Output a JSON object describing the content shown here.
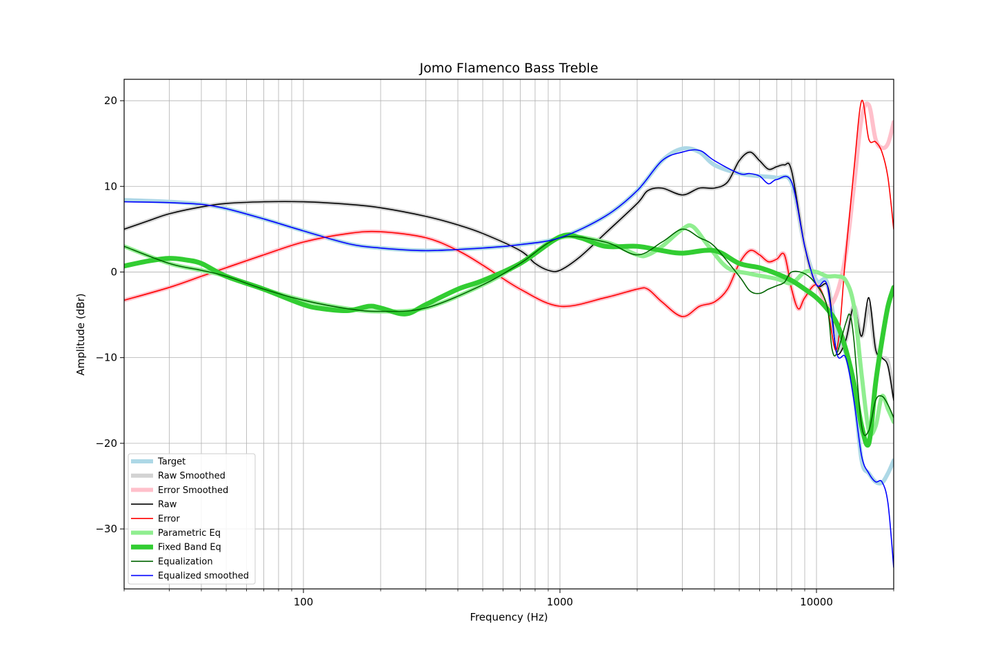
{
  "chart_data": {
    "type": "line",
    "title": "Jomo Flamenco Bass Treble",
    "xlabel": "Frequency (Hz)",
    "ylabel": "Amplitude (dBr)",
    "xscale": "log",
    "xlim": [
      20,
      20000
    ],
    "ylim": [
      -37,
      22.5
    ],
    "x_ticks": [
      100,
      1000,
      10000
    ],
    "x_tick_labels": [
      "100",
      "1000",
      "10000"
    ],
    "y_ticks": [
      20,
      10,
      0,
      -10,
      -20,
      -30
    ],
    "y_tick_labels": [
      "20",
      "10",
      "0",
      "−10",
      "−20",
      "−30"
    ],
    "grid": true,
    "legend_position": "lower-left",
    "series": [
      {
        "name": "Target",
        "color": "#add8e6",
        "width": 6,
        "x": [
          20,
          30,
          40,
          50,
          70,
          100,
          150,
          200,
          300,
          500,
          700,
          1000,
          1500,
          2000,
          2500,
          3000,
          3500,
          4000,
          5000,
          6000,
          7000,
          8000,
          9000,
          10000,
          11000,
          12000,
          13000,
          14000,
          15000,
          16000,
          17000,
          18000,
          19000,
          20000
        ],
        "y": [
          8.4,
          8.2,
          7.9,
          7.4,
          6.2,
          4.8,
          3.3,
          2.8,
          2.5,
          2.8,
          3.2,
          4.0,
          6.5,
          9.5,
          13.0,
          14.4,
          14.0,
          12.5,
          11.5,
          11.2,
          11.0,
          10.4,
          3.0,
          -1.0,
          -1.2,
          -7.5,
          -9.5,
          -14.0,
          -22.0,
          -23.5,
          -24.5,
          -24.6,
          -23.5,
          -22.0
        ]
      },
      {
        "name": "Raw Smoothed",
        "color": "#d3d3d3",
        "width": 6,
        "x": [
          20,
          25,
          30,
          40,
          50,
          70,
          100,
          150,
          200,
          300,
          400,
          500,
          700,
          800,
          900,
          1000,
          1200,
          1500,
          2000,
          2200,
          2500,
          3000,
          3500,
          4000,
          4500,
          5000,
          5500,
          6000,
          6500,
          7000,
          7500,
          8000,
          9000,
          10000,
          11000,
          11500,
          12000,
          13000,
          14000,
          15000,
          16000,
          17000,
          18000,
          19000,
          20000
        ],
        "y": [
          5.0,
          6.0,
          6.8,
          7.6,
          8.0,
          8.2,
          8.2,
          7.9,
          7.5,
          6.5,
          5.5,
          4.5,
          2.5,
          1.0,
          0.2,
          0.2,
          1.8,
          4.5,
          8.0,
          9.5,
          9.8,
          9.0,
          9.8,
          9.8,
          10.5,
          13.0,
          14.0,
          13.0,
          12.0,
          12.3,
          12.5,
          11.8,
          3.0,
          -1.5,
          -1.5,
          -5.0,
          -9.0,
          -8.0,
          -4.0,
          -7.5,
          -4.0,
          -9.0,
          -10.0,
          -10.5,
          -14.5
        ]
      },
      {
        "name": "Error Smoothed",
        "color": "#ffc0cb",
        "width": 6,
        "x": [
          20,
          30,
          40,
          50,
          70,
          100,
          150,
          200,
          300,
          400,
          500,
          700,
          1000,
          1500,
          2000,
          2200,
          2500,
          3000,
          3500,
          4000,
          4500,
          5000,
          5500,
          6000,
          6500,
          7000,
          7500,
          8000,
          8500,
          9000,
          10000,
          11000,
          12000,
          13000,
          14000,
          15000,
          16000,
          17000,
          18000,
          19000,
          20000
        ],
        "y": [
          -3.3,
          -1.8,
          -0.5,
          0.5,
          2.0,
          3.5,
          4.5,
          4.7,
          4.0,
          2.5,
          0.8,
          -2.0,
          -4.0,
          -3.0,
          -2.0,
          -2.0,
          -3.5,
          -5.2,
          -4.0,
          -3.5,
          -2.0,
          1.0,
          2.5,
          2.0,
          1.2,
          1.5,
          2.0,
          -2.0,
          -4.3,
          -3.0,
          -1.5,
          -4.0,
          -2.5,
          2.0,
          10.0,
          18.0,
          19.5,
          15.5,
          14.5,
          15.0,
          17.5
        ]
      },
      {
        "name": "Raw",
        "color": "#000000",
        "width": 1.6,
        "x": [
          20,
          25,
          30,
          40,
          50,
          70,
          100,
          150,
          200,
          300,
          400,
          500,
          700,
          800,
          900,
          1000,
          1200,
          1500,
          2000,
          2200,
          2500,
          3000,
          3500,
          4000,
          4500,
          5000,
          5500,
          6000,
          6500,
          7000,
          7500,
          8000,
          9000,
          10000,
          11000,
          11500,
          12000,
          13000,
          14000,
          15000,
          16000,
          17000,
          18000,
          19000,
          20000
        ],
        "y": [
          5.0,
          6.0,
          6.8,
          7.6,
          8.0,
          8.2,
          8.2,
          7.9,
          7.5,
          6.5,
          5.5,
          4.5,
          2.5,
          1.0,
          0.2,
          0.2,
          1.8,
          4.5,
          8.0,
          9.5,
          9.8,
          9.0,
          9.8,
          9.8,
          10.5,
          13.0,
          14.0,
          13.0,
          12.0,
          12.3,
          12.5,
          11.8,
          3.0,
          -1.5,
          -1.5,
          -5.0,
          -9.5,
          -8.0,
          -4.0,
          -7.5,
          -3.0,
          -9.0,
          -10.0,
          -11.0,
          -15.0
        ]
      },
      {
        "name": "Error",
        "color": "#ff0000",
        "width": 1.6,
        "x": [
          20,
          30,
          40,
          50,
          70,
          100,
          150,
          200,
          300,
          400,
          500,
          700,
          1000,
          1500,
          2000,
          2200,
          2500,
          3000,
          3500,
          4000,
          4500,
          5000,
          5500,
          6000,
          6500,
          7000,
          7500,
          8000,
          8500,
          9000,
          10000,
          11000,
          12000,
          13000,
          14000,
          15000,
          16000,
          17000,
          18000,
          19000,
          20000
        ],
        "y": [
          -3.3,
          -1.8,
          -0.5,
          0.5,
          2.0,
          3.5,
          4.5,
          4.7,
          4.0,
          2.5,
          0.8,
          -2.0,
          -4.0,
          -3.0,
          -2.0,
          -2.0,
          -3.5,
          -5.2,
          -4.0,
          -3.5,
          -2.0,
          1.0,
          2.5,
          2.0,
          1.2,
          1.5,
          2.0,
          -2.0,
          -4.3,
          -3.0,
          -1.5,
          -4.0,
          -9.0,
          2.0,
          12.0,
          20.0,
          15.5,
          15.2,
          14.0,
          11.0,
          5.0
        ]
      },
      {
        "name": "Parametric Eq",
        "color": "#90ee90",
        "width": 6,
        "x": [
          20,
          30,
          40,
          50,
          70,
          100,
          150,
          200,
          300,
          500,
          700,
          1000,
          1500,
          2000,
          2200,
          2500,
          3000,
          3300,
          3800,
          4500,
          5500,
          7000,
          8000,
          9000,
          10000,
          11000,
          12000,
          13000,
          14000,
          15000,
          16000,
          17000,
          18000,
          19000,
          20000
        ],
        "y": [
          3.0,
          1.0,
          0.2,
          -0.5,
          -2.0,
          -3.3,
          -4.3,
          -4.6,
          -4.2,
          -1.5,
          1.0,
          4.0,
          3.5,
          2.0,
          2.0,
          3.0,
          5.0,
          5.3,
          3.0,
          0.5,
          -0.2,
          -0.8,
          -1.3,
          0.0,
          0.0,
          -0.5,
          -0.5,
          -1.0,
          -4.0,
          -12.0,
          -18.5,
          -18.0,
          -14.5,
          -16.0,
          -17.5
        ]
      },
      {
        "name": "Fixed Band Eq",
        "color": "#32cd32",
        "width": 7,
        "x": [
          20,
          25,
          30,
          35,
          40,
          50,
          70,
          100,
          120,
          150,
          180,
          200,
          250,
          300,
          400,
          500,
          700,
          1000,
          1200,
          1500,
          2000,
          2500,
          3000,
          4000,
          5000,
          6000,
          7000,
          8000,
          9000,
          10000,
          11000,
          12000,
          13000,
          14000,
          15000,
          16000,
          17000,
          18000,
          19000,
          20000
        ],
        "y": [
          0.7,
          1.3,
          1.6,
          1.4,
          1.0,
          -0.5,
          -2.0,
          -3.8,
          -4.3,
          -4.5,
          -4.0,
          -4.2,
          -4.9,
          -3.8,
          -2.0,
          -1.0,
          1.0,
          4.1,
          4.0,
          3.0,
          3.0,
          2.5,
          2.2,
          2.5,
          1.0,
          0.5,
          -0.2,
          -1.0,
          -2.0,
          -3.0,
          -4.3,
          -6.0,
          -9.0,
          -13.0,
          -18.0,
          -20.0,
          -13.0,
          -8.0,
          -4.0,
          -1.8
        ]
      },
      {
        "name": "Equalization",
        "color": "#006400",
        "width": 1.6,
        "x": [
          20,
          30,
          40,
          50,
          70,
          100,
          150,
          200,
          300,
          500,
          700,
          1000,
          1500,
          2000,
          2500,
          3000,
          3500,
          4000,
          5000,
          5500,
          6000,
          6500,
          7000,
          7500,
          8000,
          9000,
          10000,
          11000,
          11500,
          12000,
          13000,
          13500,
          14000,
          15000,
          16000,
          17000,
          18000,
          19000,
          20000
        ],
        "y": [
          3.0,
          1.0,
          0.2,
          -0.5,
          -2.0,
          -3.3,
          -4.3,
          -4.6,
          -4.2,
          -1.5,
          1.0,
          4.0,
          3.5,
          2.0,
          3.5,
          5.0,
          4.0,
          3.0,
          -0.5,
          -2.2,
          -2.5,
          -2.0,
          -1.6,
          -1.2,
          0.0,
          -0.2,
          -1.5,
          -4.0,
          -9.0,
          -9.5,
          -6.0,
          -5.0,
          -8.0,
          -18.0,
          -18.5,
          -15.0,
          -14.5,
          -15.5,
          -17.0
        ]
      },
      {
        "name": "Equalized smoothed",
        "color": "#0000ff",
        "width": 1.6,
        "x": [
          20,
          30,
          40,
          50,
          70,
          100,
          150,
          200,
          300,
          500,
          700,
          1000,
          1500,
          2000,
          2500,
          3000,
          3500,
          4000,
          5000,
          5500,
          6000,
          6500,
          7000,
          8000,
          9000,
          10000,
          11000,
          12000,
          13000,
          14000,
          15000,
          16000,
          17000,
          18000,
          19000,
          20000
        ],
        "y": [
          8.2,
          8.1,
          7.9,
          7.4,
          6.2,
          4.8,
          3.3,
          2.8,
          2.5,
          2.8,
          3.2,
          4.0,
          6.5,
          9.5,
          13.0,
          14.0,
          14.2,
          13.0,
          11.5,
          11.5,
          11.2,
          10.3,
          10.8,
          10.5,
          3.0,
          -1.5,
          -1.5,
          -9.5,
          -10.0,
          -15.0,
          -21.5,
          -23.5,
          -24.5,
          -24.5,
          -27.0,
          -34.5
        ]
      }
    ]
  }
}
